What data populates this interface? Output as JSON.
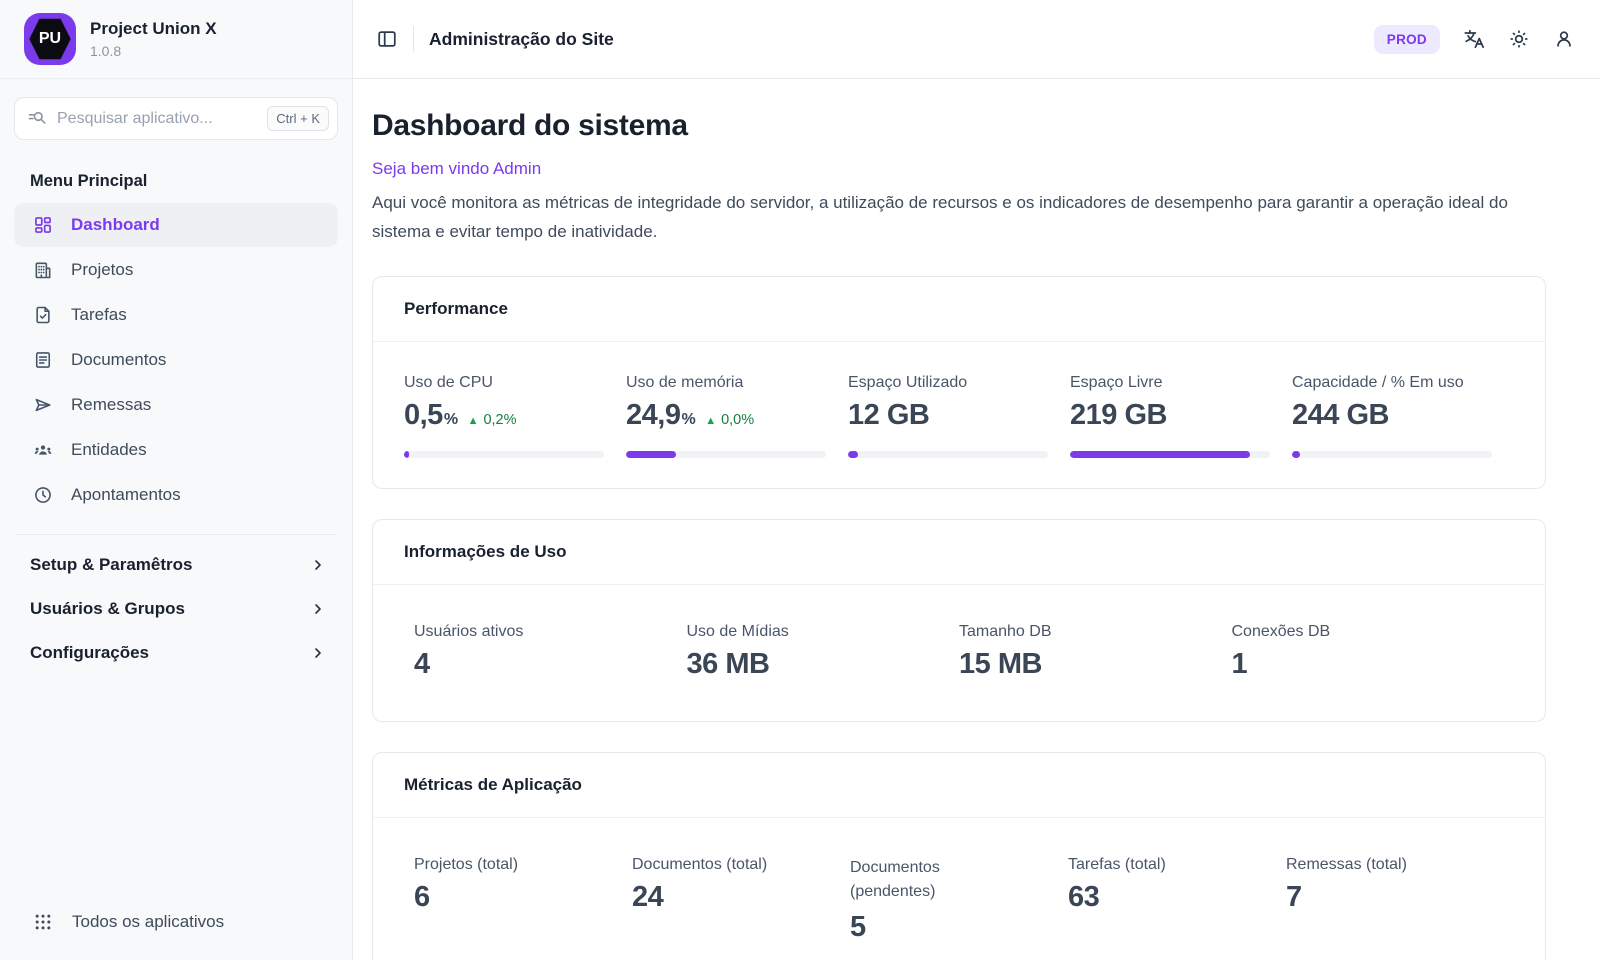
{
  "app": {
    "name": "Project Union X",
    "version": "1.0.8",
    "logo_text": "PU"
  },
  "sidebar": {
    "search": {
      "placeholder": "Pesquisar aplicativo...",
      "shortcut": "Ctrl + K"
    },
    "section_label": "Menu Principal",
    "items": [
      {
        "label": "Dashboard",
        "icon": "dashboard-grid-icon",
        "active": true
      },
      {
        "label": "Projetos",
        "icon": "building-icon",
        "active": false
      },
      {
        "label": "Tarefas",
        "icon": "file-check-icon",
        "active": false
      },
      {
        "label": "Documentos",
        "icon": "document-lines-icon",
        "active": false
      },
      {
        "label": "Remessas",
        "icon": "send-icon",
        "active": false
      },
      {
        "label": "Entidades",
        "icon": "users-icon",
        "active": false
      },
      {
        "label": "Apontamentos",
        "icon": "clock-icon",
        "active": false
      }
    ],
    "groups": [
      {
        "label": "Setup & Paramêtros"
      },
      {
        "label": "Usuários & Grupos"
      },
      {
        "label": "Configurações"
      }
    ],
    "footer": {
      "label": "Todos os aplicativos",
      "icon": "apps-grid-icon"
    }
  },
  "header": {
    "title": "Administração do Site",
    "env_badge": "PROD"
  },
  "page": {
    "title": "Dashboard do sistema",
    "welcome": "Seja bem vindo Admin",
    "description": "Aqui você monitora as métricas de integridade do servidor, a utilização de recursos e os indicadores de desempenho para garantir a operação ideal do sistema e evitar tempo de inatividade."
  },
  "cards": {
    "performance": {
      "title": "Performance",
      "stats": [
        {
          "label": "Uso de CPU",
          "value": "0,5",
          "unit": "%",
          "delta": "0,2%",
          "progress": 1
        },
        {
          "label": "Uso de memória",
          "value": "24,9",
          "unit": "%",
          "delta": "0,0%",
          "progress": 25
        },
        {
          "label": "Espaço Utilizado",
          "value": "12 GB",
          "progress": 5
        },
        {
          "label": "Espaço Livre",
          "value": "219 GB",
          "progress": 90
        },
        {
          "label": "Capacidade / % Em uso",
          "value": "244 GB",
          "progress": 4
        }
      ]
    },
    "usage": {
      "title": "Informações de Uso",
      "stats": [
        {
          "label": "Usuários ativos",
          "value": "4"
        },
        {
          "label": "Uso de Mídias",
          "value": "36 MB"
        },
        {
          "label": "Tamanho DB",
          "value": "15 MB"
        },
        {
          "label": "Conexões DB",
          "value": "1"
        }
      ]
    },
    "metrics": {
      "title": "Métricas de Aplicação",
      "stats": [
        {
          "label": "Projetos (total)",
          "value": "6"
        },
        {
          "label": "Documentos (total)",
          "value": "24"
        },
        {
          "label": "Documentos (pendentes)",
          "value": "5"
        },
        {
          "label": "Tarefas (total)",
          "value": "63"
        },
        {
          "label": "Remessas (total)",
          "value": "7"
        }
      ]
    }
  },
  "colors": {
    "accent": "#7c3aed",
    "accent_bg": "#ede9fe",
    "positive": "#16a34a",
    "sidebar_bg": "#f8f9fb",
    "border": "#e8eaee",
    "progress_track": "#f1f2f5"
  }
}
